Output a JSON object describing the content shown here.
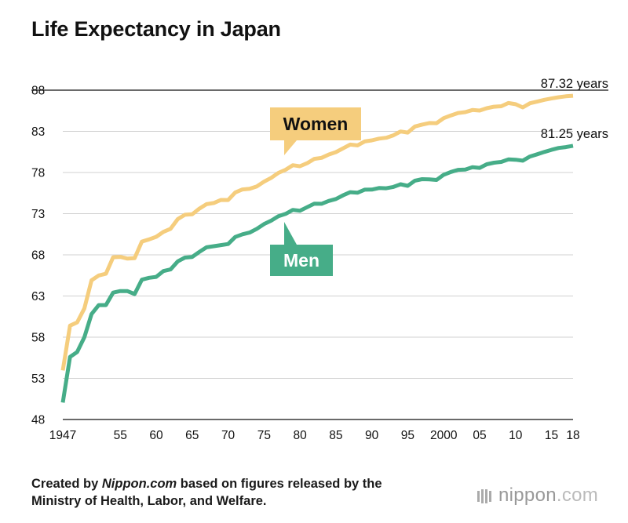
{
  "chart_data": {
    "type": "line",
    "title": "Life Expectancy in Japan",
    "xlim": [
      1947,
      2018
    ],
    "ylim": [
      48,
      88
    ],
    "y_ticks": [
      48,
      53,
      58,
      63,
      68,
      73,
      78,
      83,
      88
    ],
    "x_ticks": [
      {
        "value": 1947,
        "label": "1947"
      },
      {
        "value": 1955,
        "label": "55"
      },
      {
        "value": 1960,
        "label": "60"
      },
      {
        "value": 1965,
        "label": "65"
      },
      {
        "value": 1970,
        "label": "70"
      },
      {
        "value": 1975,
        "label": "75"
      },
      {
        "value": 1980,
        "label": "80"
      },
      {
        "value": 1985,
        "label": "85"
      },
      {
        "value": 1990,
        "label": "90"
      },
      {
        "value": 1995,
        "label": "95"
      },
      {
        "value": 2000,
        "label": "2000"
      },
      {
        "value": 2005,
        "label": "05"
      },
      {
        "value": 2010,
        "label": "10"
      },
      {
        "value": 2015,
        "label": "15"
      },
      {
        "value": 2018,
        "label": "18"
      }
    ],
    "grid": true,
    "legend": "inline callouts",
    "x": [
      1947,
      1948,
      1949,
      1950,
      1951,
      1952,
      1953,
      1954,
      1955,
      1956,
      1957,
      1958,
      1959,
      1960,
      1961,
      1962,
      1963,
      1964,
      1965,
      1966,
      1967,
      1968,
      1969,
      1970,
      1971,
      1972,
      1973,
      1974,
      1975,
      1976,
      1977,
      1978,
      1979,
      1980,
      1981,
      1982,
      1983,
      1984,
      1985,
      1986,
      1987,
      1988,
      1989,
      1990,
      1991,
      1992,
      1993,
      1994,
      1995,
      1996,
      1997,
      1998,
      1999,
      2000,
      2001,
      2002,
      2003,
      2004,
      2005,
      2006,
      2007,
      2008,
      2009,
      2010,
      2011,
      2012,
      2013,
      2014,
      2015,
      2016,
      2017,
      2018
    ],
    "series": [
      {
        "name": "Women",
        "color": "#f5cd7d",
        "label_bg": "#f5cd7d",
        "label_color": "#111111",
        "end_label": "87.32 years",
        "values": [
          53.96,
          59.4,
          59.8,
          61.5,
          64.9,
          65.5,
          65.7,
          67.7,
          67.75,
          67.54,
          67.6,
          69.61,
          69.88,
          70.19,
          70.79,
          71.16,
          72.34,
          72.87,
          72.92,
          73.61,
          74.15,
          74.3,
          74.67,
          74.66,
          75.58,
          75.94,
          76.02,
          76.31,
          76.89,
          77.35,
          77.95,
          78.33,
          78.89,
          78.76,
          79.13,
          79.66,
          79.78,
          80.18,
          80.48,
          80.93,
          81.39,
          81.3,
          81.77,
          81.9,
          82.11,
          82.22,
          82.51,
          82.98,
          82.85,
          83.59,
          83.82,
          84.01,
          83.99,
          84.6,
          84.93,
          85.23,
          85.33,
          85.59,
          85.52,
          85.81,
          85.99,
          86.05,
          86.44,
          86.3,
          85.9,
          86.41,
          86.61,
          86.83,
          86.99,
          87.14,
          87.26,
          87.32
        ]
      },
      {
        "name": "Men",
        "color": "#46ad88",
        "label_bg": "#46ad88",
        "label_color": "#ffffff",
        "end_label": "81.25 years",
        "values": [
          50.06,
          55.6,
          56.2,
          58.0,
          60.8,
          61.9,
          61.9,
          63.41,
          63.6,
          63.59,
          63.24,
          64.98,
          65.21,
          65.32,
          66.03,
          66.23,
          67.21,
          67.67,
          67.74,
          68.35,
          68.91,
          69.05,
          69.18,
          69.31,
          70.17,
          70.5,
          70.7,
          71.16,
          71.73,
          72.15,
          72.69,
          72.97,
          73.46,
          73.35,
          73.79,
          74.22,
          74.2,
          74.54,
          74.78,
          75.23,
          75.61,
          75.54,
          75.91,
          75.92,
          76.11,
          76.09,
          76.25,
          76.57,
          76.38,
          77.01,
          77.19,
          77.16,
          77.1,
          77.72,
          78.07,
          78.32,
          78.36,
          78.64,
          78.56,
          79.0,
          79.19,
          79.29,
          79.59,
          79.55,
          79.44,
          79.94,
          80.21,
          80.5,
          80.75,
          80.98,
          81.09,
          81.25
        ]
      }
    ]
  },
  "footer": {
    "prefix": "Created by ",
    "source": "Nippon.com",
    "rest": " based on figures released by the",
    "line2": "Ministry of Health, Labor, and Welfare."
  },
  "logo": {
    "name": "nippon",
    "suffix": ".com"
  }
}
